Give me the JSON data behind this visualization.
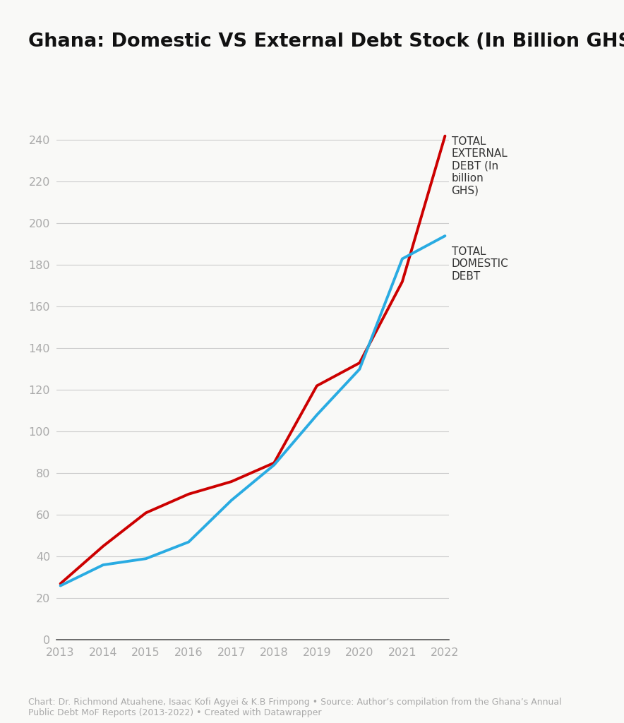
{
  "title": "Ghana: Domestic VS External Debt Stock (In Billion GHS)",
  "years": [
    2013,
    2014,
    2015,
    2016,
    2017,
    2018,
    2019,
    2020,
    2021,
    2022
  ],
  "external_debt": [
    27,
    45,
    61,
    70,
    76,
    85,
    122,
    133,
    172,
    242
  ],
  "domestic_debt": [
    26,
    36,
    39,
    47,
    67,
    84,
    108,
    130,
    183,
    194
  ],
  "external_color": "#cc0000",
  "domestic_color": "#29abe2",
  "external_label": "TOTAL\nEXTERNAL\nDEBT (In\nbillion\nGHS)",
  "domestic_label": "TOTAL\nDOMESTIC\nDEBT",
  "ylim_min": 0,
  "ylim_max": 250,
  "yticks": [
    0,
    20,
    40,
    60,
    80,
    100,
    120,
    140,
    160,
    180,
    200,
    220,
    240
  ],
  "background_color": "#f9f9f7",
  "grid_color": "#cccccc",
  "tick_color": "#aaaaaa",
  "line_width": 2.8,
  "footnote": "Chart: Dr. Richmond Atuahene, Isaac Kofi Agyei & K.B Frimpong • Source: Author’s compilation from the Ghana’s Annual\nPublic Debt MoF Reports (2013-2022) • Created with Datawrapper"
}
